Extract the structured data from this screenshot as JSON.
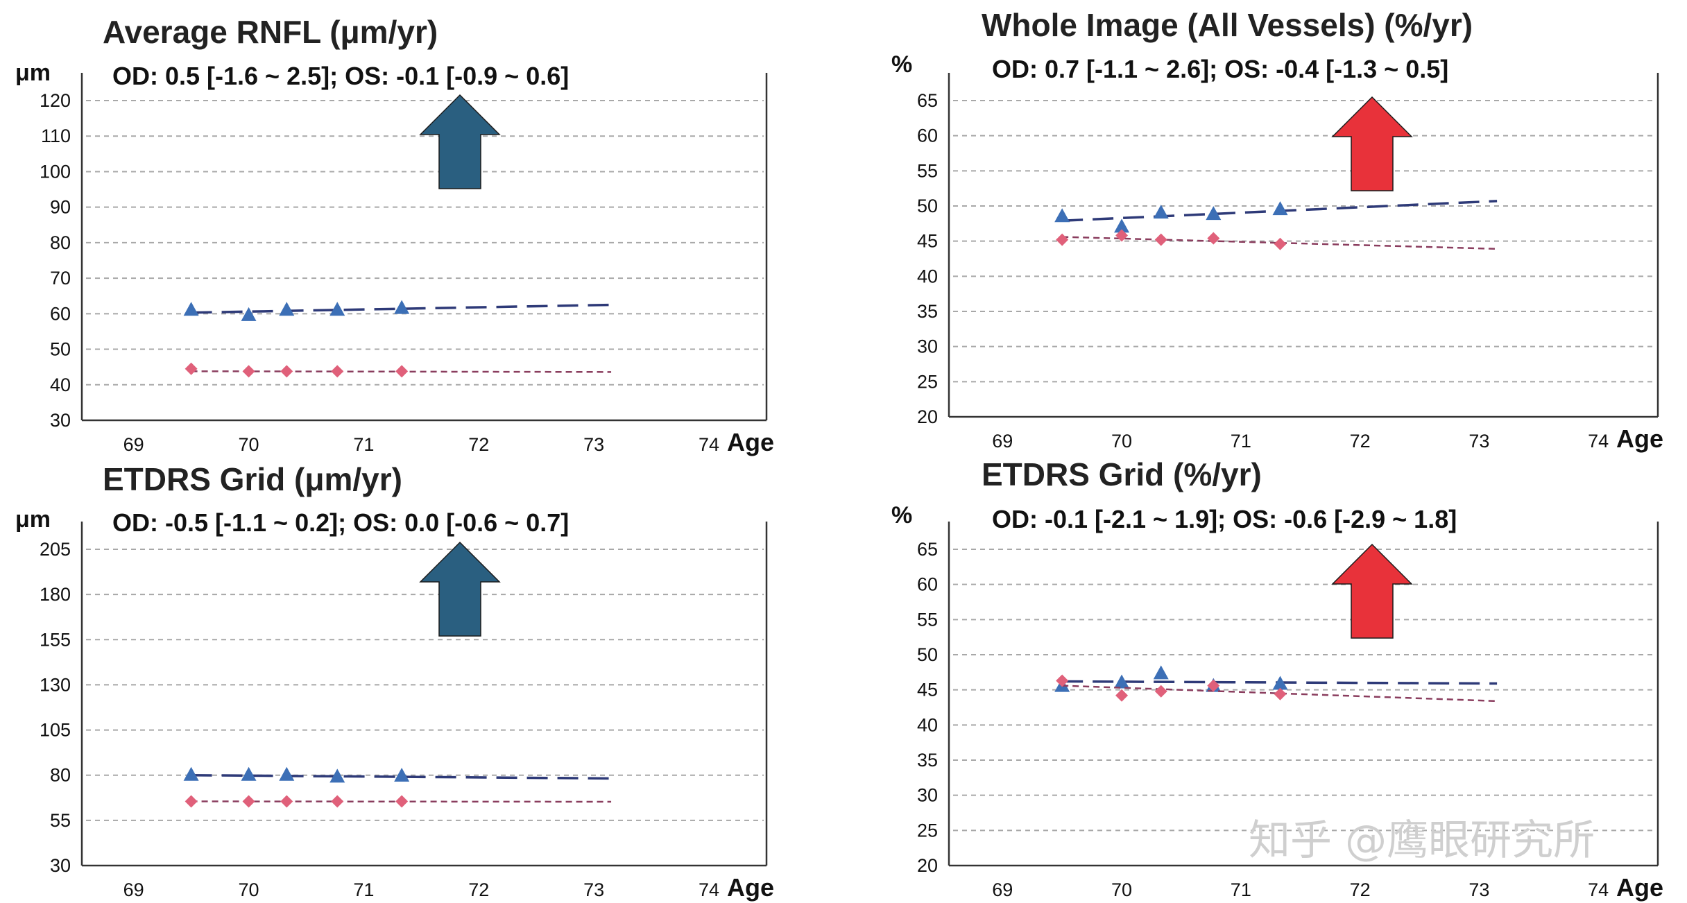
{
  "chart_data": [
    {
      "type": "line",
      "title": "Average RNFL (μm/yr)",
      "subtitle": "OD: 0.5 [-1.6 ~ 2.5]; OS: -0.1 [-0.9 ~ 0.6]",
      "ylabel": "μm",
      "xlabel": "Age",
      "xlim": [
        68.55,
        74.5
      ],
      "xticks": [
        69,
        70,
        71,
        72,
        73,
        74
      ],
      "ylim": [
        30,
        120
      ],
      "yticks": [
        30,
        40,
        50,
        60,
        70,
        80,
        90,
        100,
        110,
        120
      ],
      "grid": true,
      "arrow_color": "#2a5f80",
      "series": [
        {
          "marker": "triangle",
          "color": "#3c6fb6",
          "x": [
            69.5,
            70.0,
            70.33,
            70.77,
            71.33
          ],
          "y": [
            61,
            59.5,
            61,
            61,
            61.5
          ],
          "trend": {
            "x": [
              69.5,
              73.15
            ],
            "y": [
              60.3,
              62.5
            ],
            "style": "long-dash",
            "color": "#2e3a78"
          }
        },
        {
          "marker": "diamond",
          "color": "#e0607a",
          "x": [
            69.5,
            70.0,
            70.33,
            70.77,
            71.33
          ],
          "y": [
            44.5,
            43.8,
            43.8,
            43.8,
            43.8
          ],
          "trend": {
            "x": [
              69.5,
              73.15
            ],
            "y": [
              43.8,
              43.6
            ],
            "style": "short-dash",
            "color": "#8a3d5e"
          }
        }
      ]
    },
    {
      "type": "line",
      "title": "Whole Image (All Vessels) (%/yr)",
      "subtitle": "OD: 0.7 [-1.1 ~ 2.6]; OS: -0.4 [-1.3 ~ 0.5]",
      "ylabel": "%",
      "xlabel": "Age",
      "xlim": [
        68.55,
        74.5
      ],
      "xticks": [
        69,
        70,
        71,
        72,
        73,
        74
      ],
      "ylim": [
        20,
        65
      ],
      "yticks": [
        20,
        25,
        30,
        35,
        40,
        45,
        50,
        55,
        60,
        65
      ],
      "grid": true,
      "arrow_color": "#e8323a",
      "series": [
        {
          "marker": "triangle",
          "color": "#3c6fb6",
          "x": [
            69.5,
            70.0,
            70.33,
            70.77,
            71.33
          ],
          "y": [
            48.5,
            47,
            49,
            48.8,
            49.5
          ],
          "trend": {
            "x": [
              69.5,
              73.15
            ],
            "y": [
              47.9,
              50.7
            ],
            "style": "long-dash",
            "color": "#2e3a78"
          }
        },
        {
          "marker": "diamond",
          "color": "#e0607a",
          "x": [
            69.5,
            70.0,
            70.33,
            70.77,
            71.33
          ],
          "y": [
            45.2,
            45.8,
            45.2,
            45.4,
            44.6
          ],
          "trend": {
            "x": [
              69.5,
              73.15
            ],
            "y": [
              45.6,
              43.9
            ],
            "style": "short-dash",
            "color": "#8a3d5e"
          }
        }
      ]
    },
    {
      "type": "line",
      "title": "ETDRS Grid (μm/yr)",
      "subtitle": "OD: -0.5 [-1.1 ~ 0.2]; OS: 0.0 [-0.6 ~ 0.7]",
      "ylabel": "μm",
      "xlabel": "Age",
      "xlim": [
        68.55,
        74.5
      ],
      "xticks": [
        69,
        70,
        71,
        72,
        73,
        74
      ],
      "ylim": [
        30,
        205
      ],
      "yticks": [
        30,
        55,
        80,
        105,
        130,
        155,
        180,
        205
      ],
      "grid": true,
      "arrow_color": "#2a5f80",
      "series": [
        {
          "marker": "triangle",
          "color": "#3c6fb6",
          "x": [
            69.5,
            70.0,
            70.33,
            70.77,
            71.33
          ],
          "y": [
            80,
            80,
            80,
            79,
            79.5
          ],
          "trend": {
            "x": [
              69.5,
              73.15
            ],
            "y": [
              80,
              78.2
            ],
            "style": "long-dash",
            "color": "#2e3a78"
          }
        },
        {
          "marker": "diamond",
          "color": "#e0607a",
          "x": [
            69.5,
            70.0,
            70.33,
            70.77,
            71.33
          ],
          "y": [
            65.5,
            65.5,
            65.5,
            65.5,
            65.5
          ],
          "trend": {
            "x": [
              69.5,
              73.15
            ],
            "y": [
              65.5,
              65.3
            ],
            "style": "short-dash",
            "color": "#8a3d5e"
          }
        }
      ]
    },
    {
      "type": "line",
      "title": "ETDRS Grid (%/yr)",
      "subtitle": "OD: -0.1 [-2.1 ~ 1.9]; OS: -0.6 [-2.9 ~ 1.8]",
      "ylabel": "%",
      "xlabel": "Age",
      "xlim": [
        68.55,
        74.5
      ],
      "xticks": [
        69,
        70,
        71,
        72,
        73,
        74
      ],
      "ylim": [
        20,
        65
      ],
      "yticks": [
        20,
        25,
        30,
        35,
        40,
        45,
        50,
        55,
        60,
        65
      ],
      "grid": true,
      "arrow_color": "#e8323a",
      "series": [
        {
          "marker": "triangle",
          "color": "#3c6fb6",
          "x": [
            69.5,
            70.0,
            70.33,
            70.77,
            71.33
          ],
          "y": [
            45.5,
            46,
            47.3,
            45.5,
            45.8
          ],
          "trend": {
            "x": [
              69.5,
              73.15
            ],
            "y": [
              46.2,
              45.9
            ],
            "style": "long-dash",
            "color": "#2e3a78"
          }
        },
        {
          "marker": "diamond",
          "color": "#e0607a",
          "x": [
            69.5,
            70.0,
            70.33,
            70.77,
            71.33
          ],
          "y": [
            46.3,
            44.2,
            44.8,
            45.6,
            44.4
          ],
          "trend": {
            "x": [
              69.5,
              73.15
            ],
            "y": [
              45.6,
              43.4
            ],
            "style": "short-dash",
            "color": "#8a3d5e"
          }
        }
      ]
    }
  ],
  "watermark": "知乎 @鹰眼研究所"
}
